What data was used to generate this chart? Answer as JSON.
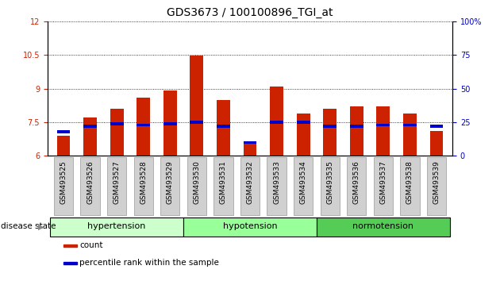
{
  "title": "GDS3673 / 100100896_TGI_at",
  "samples": [
    "GSM493525",
    "GSM493526",
    "GSM493527",
    "GSM493528",
    "GSM493529",
    "GSM493530",
    "GSM493531",
    "GSM493532",
    "GSM493533",
    "GSM493534",
    "GSM493535",
    "GSM493536",
    "GSM493537",
    "GSM493538",
    "GSM493539"
  ],
  "count_values": [
    6.9,
    7.7,
    8.1,
    8.6,
    8.9,
    10.45,
    8.5,
    6.55,
    9.1,
    7.9,
    8.1,
    8.2,
    8.2,
    7.9,
    7.1
  ],
  "percentile_values": [
    18,
    22,
    24,
    23,
    24,
    25,
    22,
    10,
    25,
    25,
    22,
    22,
    23,
    23,
    22
  ],
  "ylim_left": [
    6,
    12
  ],
  "ylim_right": [
    0,
    100
  ],
  "yticks_left": [
    6,
    7.5,
    9,
    10.5,
    12
  ],
  "yticks_right": [
    0,
    25,
    50,
    75,
    100
  ],
  "bar_color_red": "#cc2200",
  "bar_color_blue": "#0000cc",
  "plot_bg": "#ffffff",
  "disease_groups": [
    {
      "label": "hypertension",
      "start": 0,
      "end": 5,
      "color": "#ccffcc"
    },
    {
      "label": "hypotension",
      "start": 5,
      "end": 10,
      "color": "#99ff99"
    },
    {
      "label": "normotension",
      "start": 10,
      "end": 15,
      "color": "#55cc55"
    }
  ],
  "xlabel_disease": "disease state",
  "legend_items": [
    {
      "label": "count",
      "color": "#cc2200"
    },
    {
      "label": "percentile rank within the sample",
      "color": "#0000cc"
    }
  ],
  "bar_width": 0.5,
  "title_fontsize": 10,
  "tick_label_fontsize": 6.5,
  "right_tick_100_label": "100%"
}
